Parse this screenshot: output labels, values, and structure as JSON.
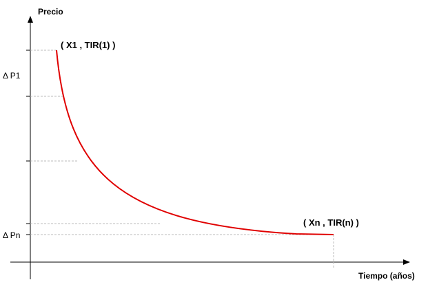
{
  "axes": {
    "y_label": "Precio",
    "x_label": "Tiempo (años)"
  },
  "points": [
    {
      "label": "( X1 , TIR(1) )"
    },
    {
      "label": "( Xn , TIR(n) )"
    }
  ],
  "levels": [
    {
      "label": "Δ P1"
    },
    {
      "label": "Δ Pn"
    }
  ]
}
